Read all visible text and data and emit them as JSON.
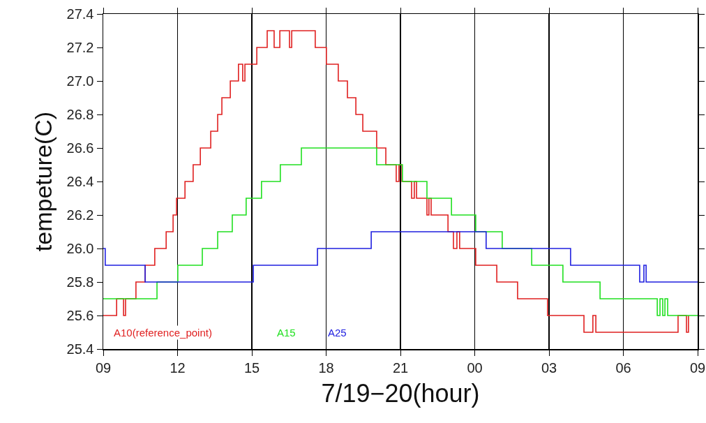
{
  "chart_data": {
    "type": "step",
    "xlabel": "7/19−20(hour)",
    "ylabel": "tempeture(C)",
    "xlim": [
      9,
      33
    ],
    "xticks": [
      {
        "value": 9,
        "label": "09"
      },
      12,
      15,
      18,
      21,
      {
        "value": 24,
        "label": "00"
      },
      {
        "value": 27,
        "label": "03"
      },
      {
        "value": 30,
        "label": "06"
      },
      {
        "value": 33,
        "label": "09"
      }
    ],
    "ylim": [
      25.4,
      27.4
    ],
    "yticks": [
      25.4,
      25.6,
      25.8,
      {
        "value": 26,
        "label": "26.0"
      },
      26.2,
      26.4,
      26.6,
      26.8,
      {
        "value": 27,
        "label": "27.0"
      },
      27.2,
      27.4
    ],
    "grid": "x",
    "legend": false,
    "marker": "none",
    "line_style": "solid",
    "series": [
      {
        "name": "A10(reference_point)",
        "color": "#e02020",
        "x": [
          9,
          9.54,
          9.82,
          9.9,
          10.32,
          10.69,
          11.08,
          11.54,
          11.82,
          11.96,
          12.3,
          12.63,
          12.92,
          13.34,
          13.62,
          13.79,
          14.13,
          14.46,
          14.63,
          14.72,
          15.2,
          15.62,
          15.9,
          16.13,
          16.52,
          16.61,
          17.56,
          18.01,
          18.49,
          18.86,
          19.2,
          19.48,
          20.04,
          20.41,
          20.83,
          20.94,
          21.06,
          21.45,
          21.56,
          21.65,
          22.07,
          22.15,
          22.24,
          22.92,
          23.14,
          23.28,
          23.39,
          24.04,
          24.89,
          25.73,
          26.94,
          28.41,
          28.77,
          28.89,
          32.21,
          32.55,
          32.63
        ],
        "values": [
          25.6,
          25.7,
          25.6,
          25.7,
          25.8,
          25.9,
          26.0,
          26.1,
          26.2,
          26.3,
          26.4,
          26.5,
          26.6,
          26.7,
          26.8,
          26.9,
          27.0,
          27.1,
          27.0,
          27.1,
          27.2,
          27.3,
          27.2,
          27.3,
          27.2,
          27.3,
          27.2,
          27.1,
          27.0,
          26.9,
          26.8,
          26.7,
          26.6,
          26.5,
          26.4,
          26.5,
          26.4,
          26.3,
          26.4,
          26.3,
          26.2,
          26.3,
          26.2,
          26.1,
          26.0,
          26.1,
          26.0,
          25.9,
          25.8,
          25.7,
          25.6,
          25.5,
          25.6,
          25.5,
          25.6,
          25.5,
          25.6
        ]
      },
      {
        "name": "A15",
        "color": "#20e020",
        "x": [
          9,
          11.17,
          12.01,
          13.0,
          13.62,
          14.21,
          14.77,
          15.39,
          16.15,
          17.0,
          20.04,
          21.08,
          22.07,
          23.06,
          24.04,
          25.11,
          26.3,
          27.56,
          29.06,
          31.37,
          31.48,
          31.59,
          31.68,
          31.79,
          33
        ],
        "values": [
          25.7,
          25.8,
          25.9,
          26.0,
          26.1,
          26.2,
          26.3,
          26.4,
          26.5,
          26.6,
          26.5,
          26.4,
          26.3,
          26.2,
          26.1,
          26.0,
          25.9,
          25.8,
          25.7,
          25.6,
          25.7,
          25.6,
          25.7,
          25.6,
          25.6
        ]
      },
      {
        "name": "A25",
        "color": "#2020e0",
        "x": [
          9,
          9.08,
          10.69,
          15.06,
          17.65,
          19.82,
          24.46,
          27.87,
          30.66,
          30.83,
          30.92,
          33
        ],
        "values": [
          26.0,
          25.9,
          25.8,
          25.9,
          26.0,
          26.1,
          26.0,
          25.9,
          25.8,
          25.9,
          25.8,
          25.8
        ]
      }
    ]
  }
}
